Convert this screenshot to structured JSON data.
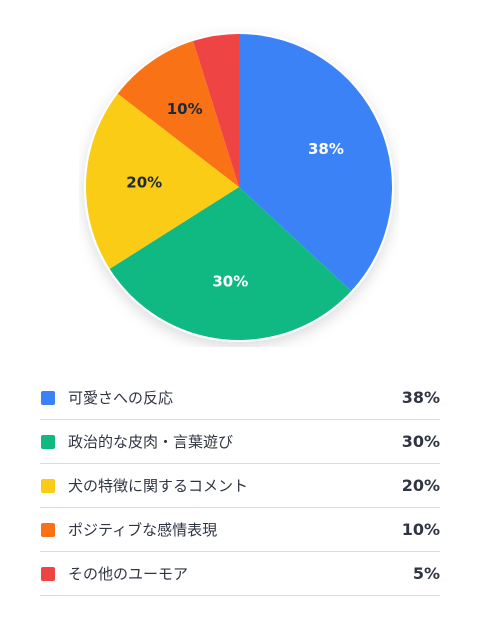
{
  "chart_data": {
    "type": "pie",
    "slices": [
      {
        "label": "可愛さへの反応",
        "value": 38,
        "display": "38%",
        "color": "#3b82f6",
        "label_color": "#ffffff"
      },
      {
        "label": "政治的な皮肉・言葉遊び",
        "value": 30,
        "display": "30%",
        "color": "#10b981",
        "label_color": "#ffffff"
      },
      {
        "label": "犬の特徴に関するコメント",
        "value": 20,
        "display": "20%",
        "color": "#facc15",
        "label_color": "#1f2937"
      },
      {
        "label": "ポジティブな感情表現",
        "value": 10,
        "display": "10%",
        "color": "#f97316",
        "label_color": "#1f2937"
      },
      {
        "label": "その他のユーモア",
        "value": 5,
        "display": "5%",
        "color": "#ef4444",
        "label_color": "#ffffff"
      }
    ],
    "start": "top",
    "direction": "clockwise",
    "legend_position": "bottom"
  }
}
